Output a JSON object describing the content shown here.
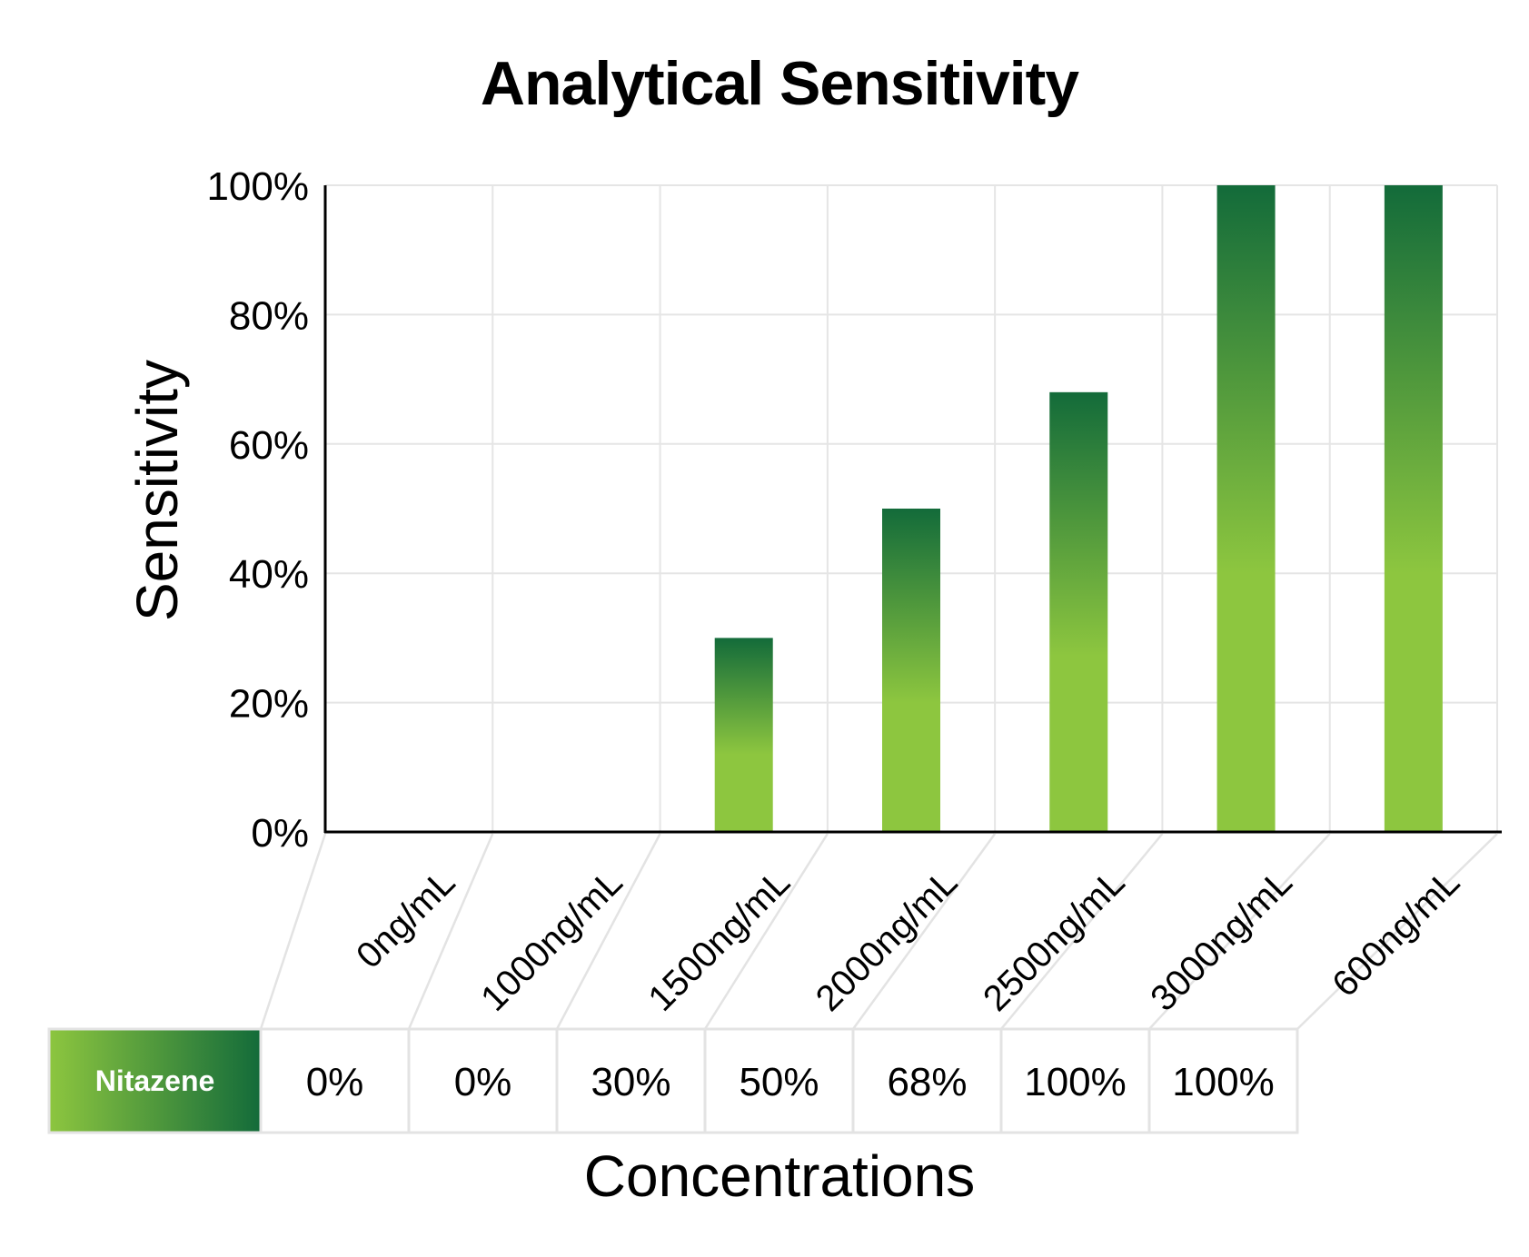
{
  "chart_data": {
    "type": "bar",
    "title": "Analytical Sensitivity",
    "xlabel": "Concentrations",
    "ylabel": "Sensitivity",
    "ylim": [
      0,
      100
    ],
    "ytick_labels": [
      "0%",
      "20%",
      "40%",
      "60%",
      "80%",
      "100%"
    ],
    "categories": [
      "0ng/mL",
      "1000ng/mL",
      "1500ng/mL",
      "2000ng/mL",
      "2500ng/mL",
      "3000ng/mL",
      "600ng/mL"
    ],
    "grid": true,
    "series": [
      {
        "name": "Nitazene",
        "values": [
          0,
          0,
          30,
          50,
          68,
          100,
          100
        ],
        "value_labels": [
          "0%",
          "0%",
          "30%",
          "50%",
          "68%",
          "100%",
          "100%"
        ],
        "gradient_top": "#136b3a",
        "gradient_bottom": "#8dc63f"
      }
    ],
    "colors": {
      "grid": "#e5e5e5",
      "axis": "#000000",
      "table_border": "#e3e3e3"
    }
  }
}
